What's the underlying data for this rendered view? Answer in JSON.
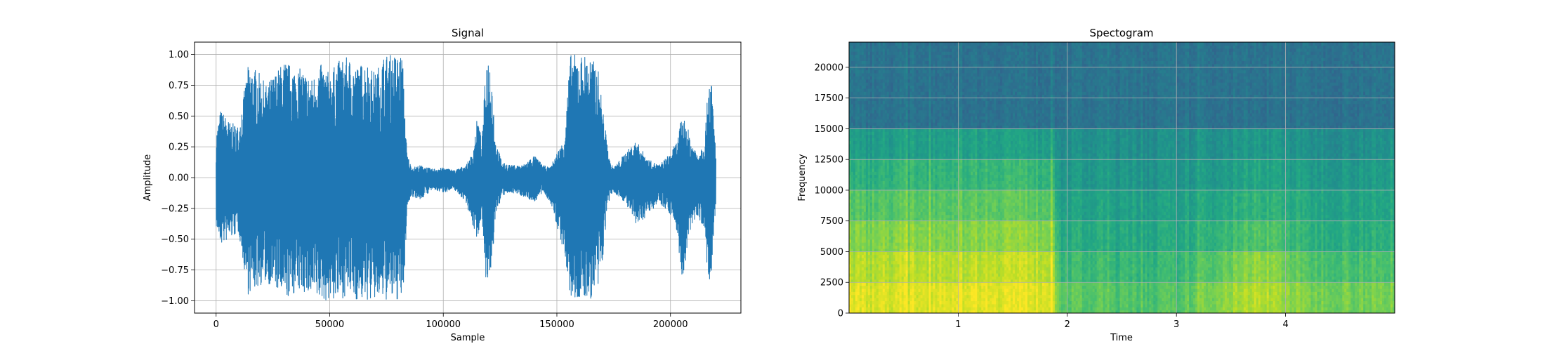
{
  "chart_data": [
    {
      "type": "line",
      "title": "Signal",
      "xlabel": "Sample",
      "ylabel": "Amplitude",
      "xlim": [
        -9500,
        231000
      ],
      "ylim": [
        -1.1,
        1.1
      ],
      "grid": true,
      "color": "#1f77b4",
      "xticks": [
        {
          "value": 0,
          "label": "0"
        },
        {
          "value": 50000,
          "label": "50000"
        },
        {
          "value": 100000,
          "label": "100000"
        },
        {
          "value": 150000,
          "label": "150000"
        },
        {
          "value": 200000,
          "label": "200000"
        }
      ],
      "yticks": [
        {
          "value": 1.0,
          "label": "1.00"
        },
        {
          "value": 0.75,
          "label": "0.75"
        },
        {
          "value": 0.5,
          "label": "0.50"
        },
        {
          "value": 0.25,
          "label": "0.25"
        },
        {
          "value": 0.0,
          "label": "0.00"
        },
        {
          "value": -0.25,
          "label": "−0.25"
        },
        {
          "value": -0.5,
          "label": "−0.50"
        },
        {
          "value": -0.75,
          "label": "−0.75"
        },
        {
          "value": -1.0,
          "label": "−1.00"
        }
      ],
      "envelope": {
        "x": [
          0,
          2000,
          6000,
          10000,
          14000,
          18000,
          22000,
          26000,
          30000,
          34000,
          38000,
          42000,
          46000,
          50000,
          54000,
          58000,
          62000,
          66000,
          70000,
          74000,
          78000,
          82000,
          83000,
          84000,
          86000,
          90000,
          95000,
          100000,
          105000,
          110000,
          113000,
          115000,
          117000,
          119000,
          121000,
          123000,
          126000,
          130000,
          135000,
          140000,
          144000,
          147000,
          150000,
          153000,
          156000,
          160000,
          164000,
          168000,
          170000,
          172000,
          173500,
          175000,
          180000,
          185000,
          190000,
          195000,
          200000,
          203000,
          205000,
          207000,
          209000,
          212000,
          215000,
          217000,
          218000,
          219000,
          220000
        ],
        "max": [
          0.35,
          0.55,
          0.45,
          0.42,
          0.9,
          0.88,
          0.75,
          0.85,
          0.95,
          0.9,
          0.88,
          0.8,
          0.92,
          0.85,
          0.95,
          0.98,
          0.9,
          0.95,
          0.85,
          1.0,
          1.0,
          1.0,
          0.6,
          0.2,
          0.08,
          0.1,
          0.07,
          0.08,
          0.06,
          0.1,
          0.2,
          0.5,
          0.3,
          1.0,
          0.95,
          0.3,
          0.12,
          0.1,
          0.1,
          0.18,
          0.1,
          0.08,
          0.2,
          0.3,
          1.0,
          1.0,
          1.0,
          0.9,
          0.6,
          0.3,
          0.12,
          0.08,
          0.2,
          0.3,
          0.15,
          0.1,
          0.2,
          0.3,
          0.5,
          0.45,
          0.3,
          0.2,
          0.3,
          0.85,
          0.8,
          0.5,
          0.2
        ],
        "min": [
          -0.4,
          -0.55,
          -0.5,
          -0.45,
          -0.95,
          -0.9,
          -0.85,
          -0.9,
          -1.0,
          -0.95,
          -0.92,
          -1.0,
          -1.0,
          -1.0,
          -1.0,
          -0.95,
          -1.0,
          -1.0,
          -1.0,
          -1.0,
          -1.0,
          -1.0,
          -0.8,
          -0.25,
          -0.15,
          -0.18,
          -0.1,
          -0.12,
          -0.1,
          -0.2,
          -0.4,
          -0.5,
          -0.3,
          -0.9,
          -0.85,
          -0.3,
          -0.15,
          -0.12,
          -0.15,
          -0.2,
          -0.12,
          -0.2,
          -0.4,
          -0.6,
          -1.0,
          -1.0,
          -1.0,
          -0.95,
          -0.7,
          -0.3,
          -0.15,
          -0.12,
          -0.2,
          -0.4,
          -0.3,
          -0.2,
          -0.3,
          -0.45,
          -0.85,
          -0.7,
          -0.4,
          -0.3,
          -0.45,
          -0.95,
          -0.85,
          -0.5,
          -0.25
        ]
      }
    },
    {
      "type": "heatmap",
      "title": "Spectogram",
      "xlabel": "Time",
      "ylabel": "Frequency",
      "xlim": [
        0.0,
        5.0
      ],
      "ylim": [
        0,
        22050
      ],
      "grid": true,
      "colormap": "viridis",
      "xticks": [
        {
          "value": 1,
          "label": "1"
        },
        {
          "value": 2,
          "label": "2"
        },
        {
          "value": 3,
          "label": "3"
        },
        {
          "value": 4,
          "label": "4"
        }
      ],
      "yticks": [
        {
          "value": 0,
          "label": "0"
        },
        {
          "value": 2500,
          "label": "2500"
        },
        {
          "value": 5000,
          "label": "5000"
        },
        {
          "value": 7500,
          "label": "7500"
        },
        {
          "value": 10000,
          "label": "10000"
        },
        {
          "value": 12500,
          "label": "12500"
        },
        {
          "value": 15000,
          "label": "15000"
        },
        {
          "value": 17500,
          "label": "17500"
        },
        {
          "value": 20000,
          "label": "20000"
        }
      ],
      "bands": {
        "time": [
          0.0,
          0.5,
          1.0,
          1.5,
          1.85,
          1.95,
          2.5,
          3.0,
          3.5,
          3.8,
          4.2,
          5.0
        ],
        "low_hz": [
          0,
          2500,
          5000,
          7500,
          10000,
          12500,
          15000
        ],
        "intensity": [
          [
            0.95,
            0.95,
            0.97,
            0.97,
            0.96,
            0.75,
            0.72,
            0.72,
            0.85,
            0.9,
            0.8,
            0.78
          ],
          [
            0.88,
            0.9,
            0.9,
            0.92,
            0.9,
            0.68,
            0.66,
            0.66,
            0.78,
            0.85,
            0.72,
            0.7
          ],
          [
            0.8,
            0.82,
            0.82,
            0.84,
            0.82,
            0.62,
            0.6,
            0.6,
            0.68,
            0.74,
            0.64,
            0.62
          ],
          [
            0.72,
            0.74,
            0.75,
            0.76,
            0.74,
            0.58,
            0.56,
            0.56,
            0.62,
            0.66,
            0.6,
            0.58
          ],
          [
            0.62,
            0.66,
            0.67,
            0.68,
            0.66,
            0.54,
            0.52,
            0.52,
            0.56,
            0.6,
            0.55,
            0.54
          ],
          [
            0.55,
            0.56,
            0.58,
            0.58,
            0.56,
            0.5,
            0.49,
            0.49,
            0.52,
            0.55,
            0.5,
            0.5
          ],
          [
            0.38,
            0.38,
            0.38,
            0.38,
            0.38,
            0.38,
            0.38,
            0.38,
            0.38,
            0.38,
            0.38,
            0.38
          ]
        ]
      }
    }
  ]
}
